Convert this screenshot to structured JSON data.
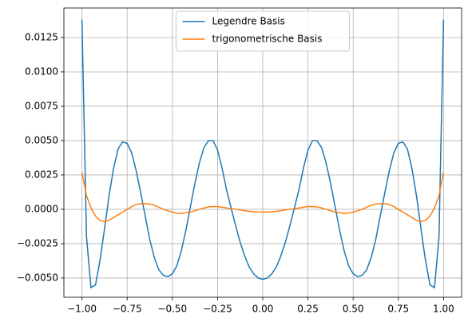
{
  "chart_data": {
    "type": "line",
    "x": [
      -1,
      -0.975,
      -0.95,
      -0.925,
      -0.9,
      -0.875,
      -0.85,
      -0.825,
      -0.8,
      -0.775,
      -0.75,
      -0.725,
      -0.7,
      -0.675,
      -0.65,
      -0.625,
      -0.6,
      -0.575,
      -0.55,
      -0.525,
      -0.5,
      -0.475,
      -0.45,
      -0.425,
      -0.4,
      -0.375,
      -0.35,
      -0.325,
      -0.3,
      -0.275,
      -0.25,
      -0.225,
      -0.2,
      -0.175,
      -0.15,
      -0.125,
      -0.1,
      -0.075,
      -0.05,
      -0.025,
      0,
      0.025,
      0.05,
      0.075,
      0.1,
      0.125,
      0.15,
      0.175,
      0.2,
      0.225,
      0.25,
      0.275,
      0.3,
      0.325,
      0.35,
      0.375,
      0.4,
      0.425,
      0.45,
      0.475,
      0.5,
      0.525,
      0.55,
      0.575,
      0.6,
      0.625,
      0.65,
      0.675,
      0.7,
      0.725,
      0.75,
      0.775,
      0.8,
      0.825,
      0.85,
      0.875,
      0.9,
      0.925,
      0.95,
      0.975,
      1
    ],
    "series": [
      {
        "name": "Legendre Basis",
        "color": "#1f77b4",
        "values": [
          0.0138,
          -0.002,
          -0.0057,
          -0.0055,
          -0.0037,
          -0.0014,
          0.001,
          0.003,
          0.0044,
          0.0049,
          0.0048,
          0.0041,
          0.0028,
          0.0012,
          -0.0005,
          -0.0022,
          -0.0035,
          -0.0044,
          -0.0048,
          -0.0049,
          -0.0047,
          -0.0041,
          -0.003,
          -0.0015,
          0.0002,
          0.0019,
          0.0034,
          0.0045,
          0.005,
          0.005,
          0.0043,
          0.003,
          0.0014,
          0.0001,
          -0.0012,
          -0.0024,
          -0.0034,
          -0.0042,
          -0.0047,
          -0.005,
          -0.0051,
          -0.005,
          -0.0047,
          -0.0042,
          -0.0034,
          -0.0024,
          -0.0012,
          0.0001,
          0.0014,
          0.003,
          0.0043,
          0.005,
          0.005,
          0.0045,
          0.0034,
          0.0019,
          0.0002,
          -0.0015,
          -0.003,
          -0.0041,
          -0.0047,
          -0.0049,
          -0.0048,
          -0.0044,
          -0.0035,
          -0.0022,
          -0.0005,
          0.0012,
          0.0028,
          0.0041,
          0.0048,
          0.0049,
          0.0044,
          0.003,
          0.001,
          -0.0014,
          -0.0037,
          -0.0055,
          -0.0057,
          -0.002,
          0.0138
        ]
      },
      {
        "name": "trigonometrische Basis",
        "color": "#ff7f0e",
        "values": [
          0.0027,
          0.001,
          0.0001,
          -0.0005,
          -0.0008,
          -0.0009,
          -0.0008,
          -0.0006,
          -0.0004,
          -0.0002,
          0,
          0.0002,
          0.00035,
          0.0004,
          0.0004,
          0.00038,
          0.0003,
          0.00015,
          0,
          -0.0001,
          -0.0002,
          -0.00028,
          -0.0003,
          -0.00025,
          -0.0002,
          -0.0001,
          0,
          0.0001,
          0.00018,
          0.0002,
          0.0002,
          0.00015,
          0.0001,
          5e-05,
          0,
          -5e-05,
          -0.0001,
          -0.00015,
          -0.00018,
          -0.0002,
          -0.0002,
          -0.0002,
          -0.00018,
          -0.00015,
          -0.0001,
          -5e-05,
          0,
          5e-05,
          0.0001,
          0.00015,
          0.0002,
          0.0002,
          0.00018,
          0.0001,
          0,
          -0.0001,
          -0.0002,
          -0.00025,
          -0.0003,
          -0.00028,
          -0.0002,
          -0.0001,
          0,
          0.00015,
          0.0003,
          0.00038,
          0.0004,
          0.0004,
          0.00035,
          0.0002,
          0,
          -0.0002,
          -0.0004,
          -0.0006,
          -0.0008,
          -0.0009,
          -0.0008,
          -0.0005,
          0.0001,
          0.001,
          0.0027
        ]
      }
    ],
    "xlim": [
      -1.1,
      1.1
    ],
    "ylim": [
      -0.0064,
      0.01465
    ],
    "xticks": [
      {
        "value": -1,
        "label": "−1.00"
      },
      {
        "value": -0.75,
        "label": "−0.75"
      },
      {
        "value": -0.5,
        "label": "−0.50"
      },
      {
        "value": -0.25,
        "label": "−0.25"
      },
      {
        "value": 0,
        "label": "0.00"
      },
      0.25,
      {
        "value": 0.5,
        "label": "0.50"
      },
      0.75,
      {
        "value": 1,
        "label": "1.00"
      }
    ],
    "yticks": [
      {
        "value": -0.005,
        "label": "−0.0050"
      },
      {
        "value": -0.0025,
        "label": "−0.0025"
      },
      {
        "value": 0,
        "label": "0.0000"
      },
      0.0025,
      {
        "value": 0.005,
        "label": "0.0050"
      },
      0.0075,
      {
        "value": 0.01,
        "label": "0.0100"
      },
      0.0125
    ],
    "grid": true,
    "legend": "upper center"
  }
}
